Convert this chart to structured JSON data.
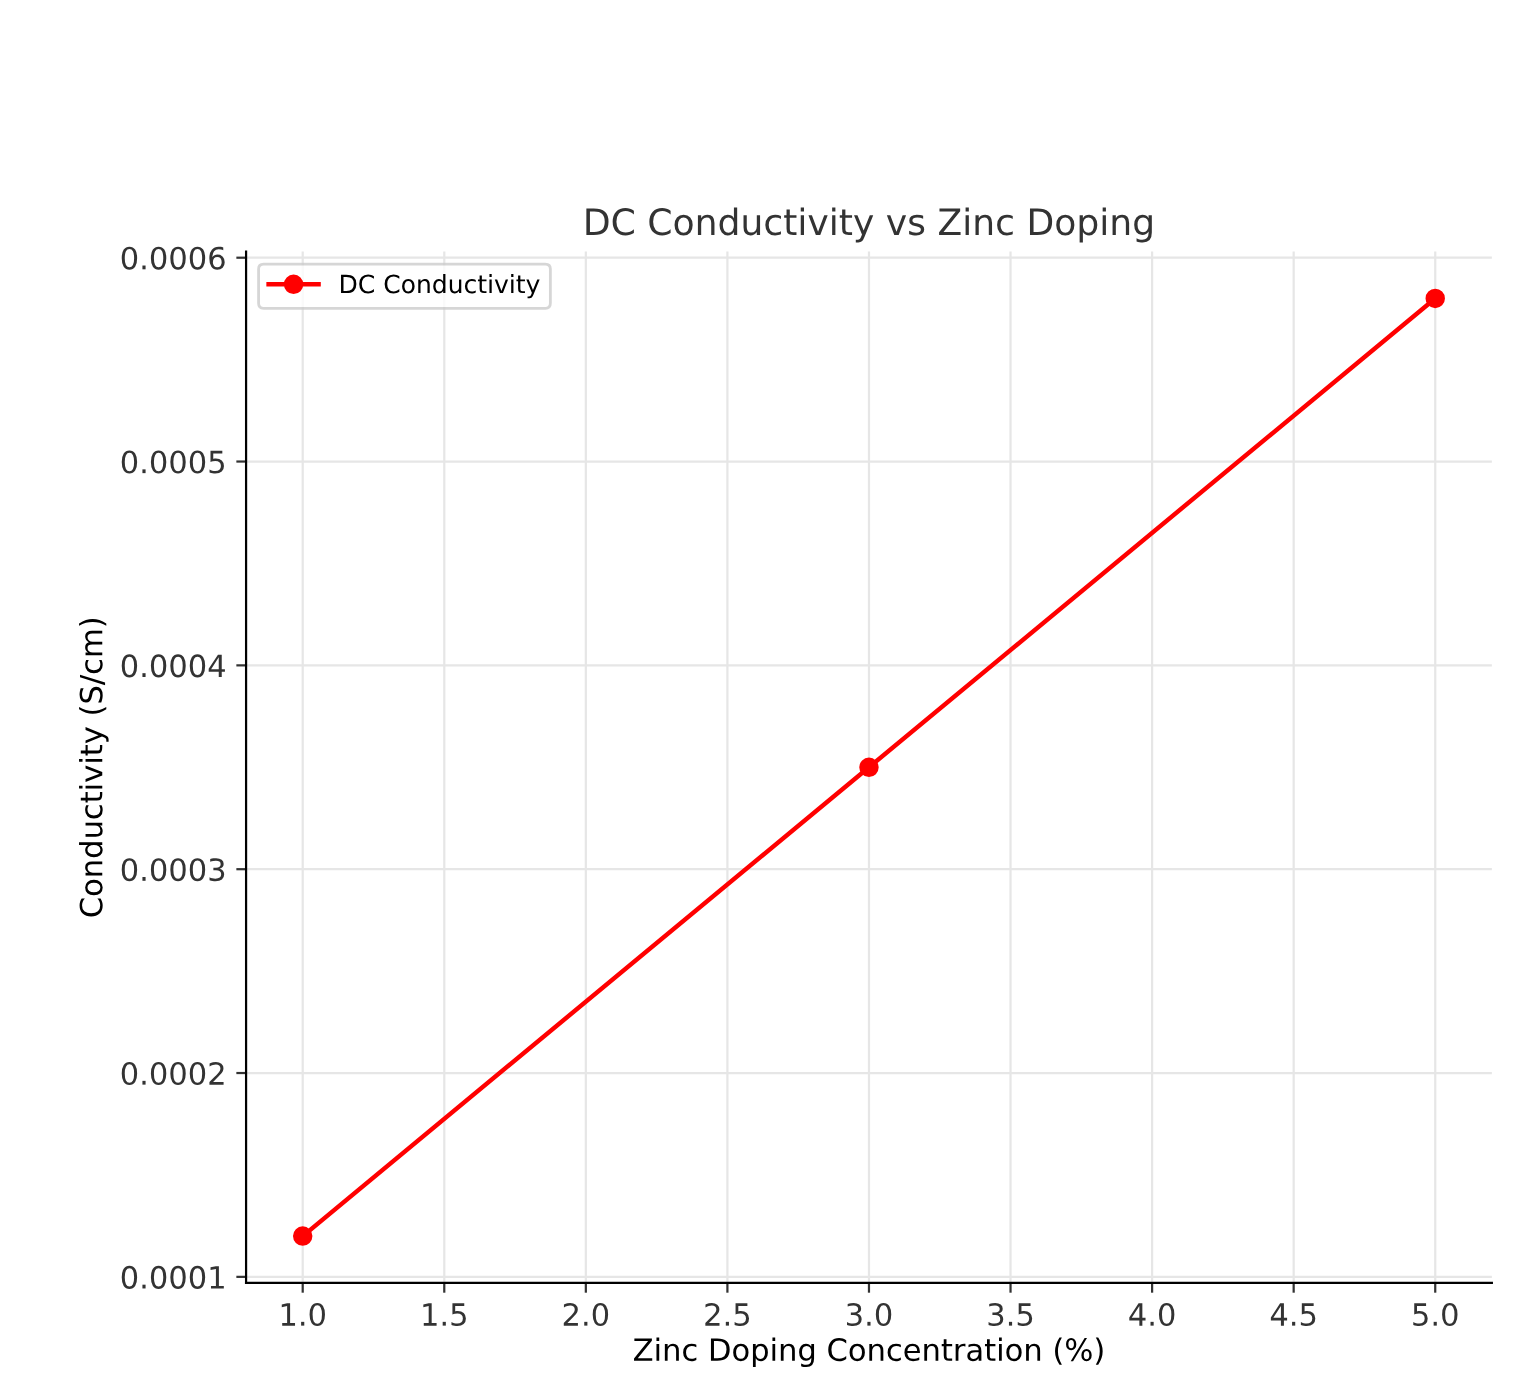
{
  "chart_data": {
    "type": "line",
    "title": "DC Conductivity vs Zinc Doping",
    "xlabel": "Zinc Doping Concentration (%)",
    "ylabel": "Conductivity (S/cm)",
    "x": [
      1.0,
      3.0,
      5.0
    ],
    "series": [
      {
        "name": "DC Conductivity",
        "color": "#ff0000",
        "values": [
          0.00012,
          0.00035,
          0.00058
        ]
      }
    ],
    "xlim": [
      0.8,
      5.2
    ],
    "xticks": [
      {
        "value": 1.0,
        "label": "1.0"
      },
      {
        "value": 1.5,
        "label": "1.5"
      },
      {
        "value": 2.0,
        "label": "2.0"
      },
      {
        "value": 2.5,
        "label": "2.5"
      },
      {
        "value": 3.0,
        "label": "3.0"
      },
      {
        "value": 3.5,
        "label": "3.5"
      },
      {
        "value": 4.0,
        "label": "4.0"
      },
      {
        "value": 4.5,
        "label": "4.5"
      },
      {
        "value": 5.0,
        "label": "5.0"
      }
    ],
    "ylim": [
      9.7e-05,
      0.000603
    ],
    "yticks": [
      0.0001,
      0.0002,
      0.0003,
      0.0004,
      0.0005,
      0.0006
    ],
    "grid": true,
    "legend": "top left",
    "marker": "circle",
    "line_style": "solid"
  }
}
